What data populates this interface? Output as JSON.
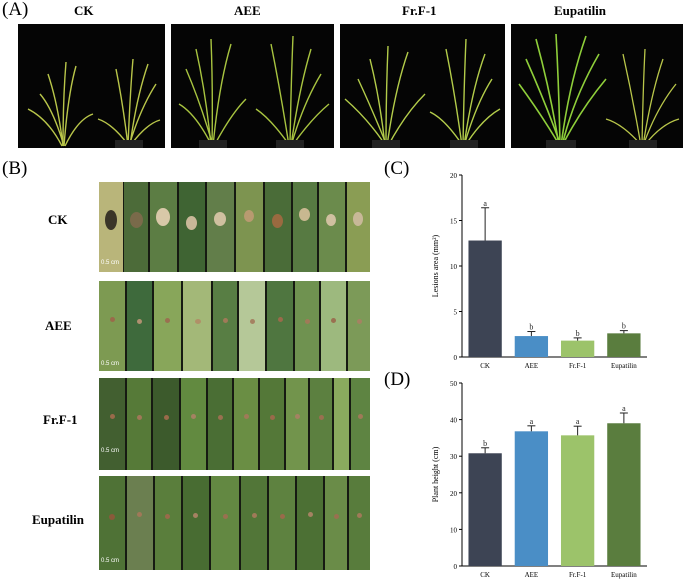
{
  "panels": {
    "a": "(A)",
    "b": "(B)",
    "c": "(C)",
    "d": "(D)"
  },
  "treatments": [
    "CK",
    "AEE",
    "Fr.F-1",
    "Eupatilin"
  ],
  "leaf_rows": [
    "CK",
    "AEE",
    "Fr.F-1",
    "Eupatilin"
  ],
  "scale_bar": "0.5 cm",
  "colors": {
    "CK": "#3d4454",
    "AEE": "#4a8ec6",
    "Fr.F-1": "#9cc36a",
    "Eupatilin": "#5a7d3e"
  },
  "chart_data": [
    {
      "type": "bar",
      "panel": "(C)",
      "categories": [
        "CK",
        "AEE",
        "Fr.F-1",
        "Eupatilin"
      ],
      "values": [
        12.8,
        2.3,
        1.8,
        2.6
      ],
      "errors": [
        3.6,
        0.5,
        0.3,
        0.3
      ],
      "letters": [
        "a",
        "b",
        "b",
        "b"
      ],
      "ylabel": "Lesions area (mm²)",
      "ylim": [
        0,
        20
      ],
      "yticks": [
        0,
        5,
        10,
        15,
        20
      ]
    },
    {
      "type": "bar",
      "panel": "(D)",
      "categories": [
        "CK",
        "AEE",
        "Fr.F-1",
        "Eupatilin"
      ],
      "values": [
        30.8,
        36.8,
        35.7,
        39.0
      ],
      "errors": [
        1.5,
        1.5,
        2.5,
        2.8
      ],
      "letters": [
        "b",
        "a",
        "a",
        "a"
      ],
      "ylabel": "Plant height (cm)",
      "ylim": [
        0,
        50
      ],
      "yticks": [
        0,
        10,
        20,
        30,
        40,
        50
      ]
    }
  ]
}
